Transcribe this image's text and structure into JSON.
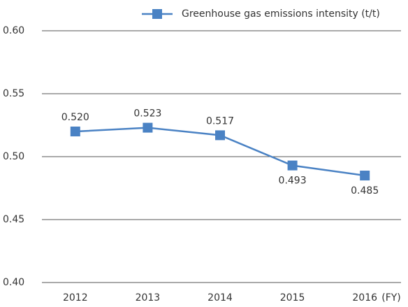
{
  "chart_data": {
    "type": "line",
    "categories": [
      "2012",
      "2013",
      "2014",
      "2015",
      "2016"
    ],
    "x_label": "(FY)",
    "series": [
      {
        "name": "Greenhouse gas emissions intensity (t/t)",
        "color": "#4a82c4",
        "values": [
          0.52,
          0.523,
          0.517,
          0.493,
          0.485
        ],
        "value_labels": [
          "0.520",
          "0.523",
          "0.517",
          "0.493",
          "0.485"
        ]
      }
    ],
    "ylim": [
      0.4,
      0.6
    ],
    "yticks": [
      {
        "value": 0.4,
        "label": "0.40"
      },
      {
        "value": 0.45,
        "label": "0.45"
      },
      {
        "value": 0.5,
        "label": "0.50"
      },
      {
        "value": 0.55,
        "label": "0.55"
      },
      {
        "value": 0.6,
        "label": "0.60"
      }
    ],
    "grid": true,
    "legend": "top"
  }
}
